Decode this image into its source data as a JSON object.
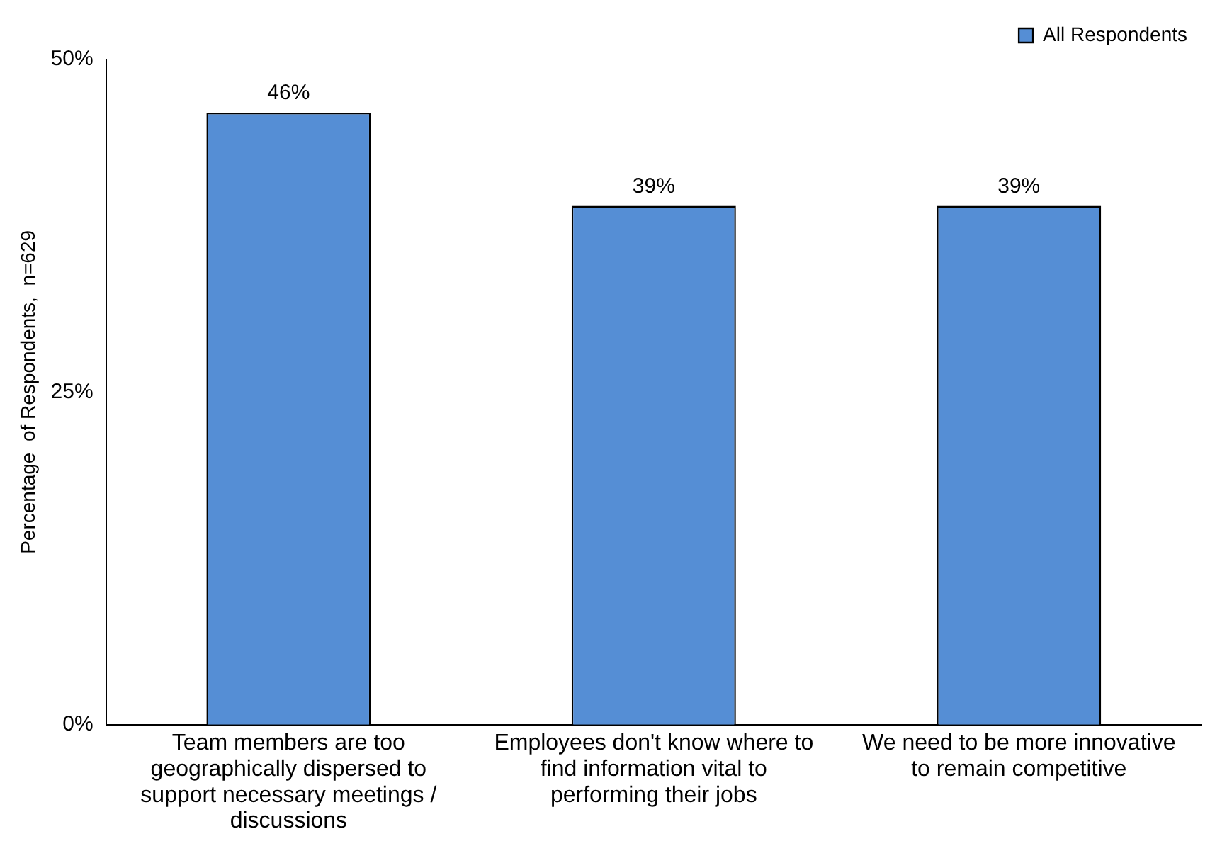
{
  "chart_data": {
    "type": "bar",
    "ylabel": "Percentage  of Respondents,  n=629",
    "categories": [
      "Team members are too geographically dispersed to support necessary meetings / discussions",
      "Employees don't know where to find information vital to performing their jobs",
      "We need to be more innovative to remain competitive"
    ],
    "series": [
      {
        "name": "All Respondents",
        "color": "#558ed5",
        "values": [
          46,
          39,
          39
        ],
        "value_labels": [
          "46%",
          "39%",
          "39%"
        ]
      }
    ],
    "ylim": [
      0,
      50
    ],
    "yticks": [
      {
        "value": 0,
        "label": "0%"
      },
      {
        "value": 25,
        "label": "25%"
      },
      {
        "value": 50,
        "label": "50%"
      }
    ],
    "grid": false,
    "legend": "top right"
  }
}
